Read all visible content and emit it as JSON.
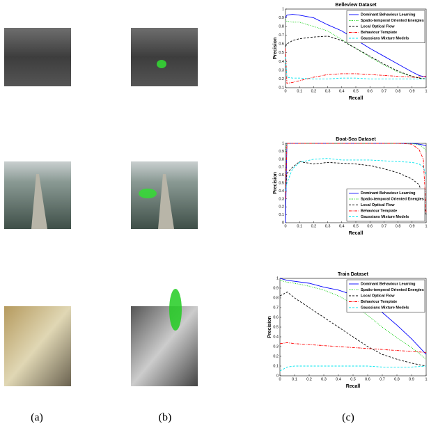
{
  "captions": [
    "(a)",
    "(b)",
    "(c)"
  ],
  "chart_data": [
    {
      "type": "line",
      "title": "Belleview Dataset",
      "xlabel": "Recall",
      "ylabel": "Precision",
      "x": [
        0,
        0.01,
        0.05,
        0.1,
        0.2,
        0.3,
        0.4,
        0.5,
        0.6,
        0.7,
        0.8,
        0.9,
        0.95,
        1
      ],
      "xlim": [
        0,
        1
      ],
      "ylim": [
        0.1,
        1
      ],
      "xticks": [
        0,
        0.1,
        0.2,
        0.3,
        0.4,
        0.5,
        0.6,
        0.7,
        0.8,
        0.9,
        1
      ],
      "yticks": [
        0.1,
        0.2,
        0.3,
        0.4,
        0.5,
        0.6,
        0.7,
        0.8,
        0.9,
        1
      ],
      "legend": "top-right",
      "series": [
        {
          "name": "Dominant Behaviour Learning",
          "color": "#0000ff",
          "dash": "solid",
          "values": [
            0.9,
            0.93,
            0.94,
            0.93,
            0.9,
            0.82,
            0.75,
            0.65,
            0.55,
            0.46,
            0.37,
            0.28,
            0.24,
            0.22
          ]
        },
        {
          "name": "Spatio-temporal Oriented Energies",
          "color": "#00cc00",
          "dash": "dotted",
          "values": [
            0.88,
            0.86,
            0.85,
            0.85,
            0.8,
            0.75,
            0.65,
            0.55,
            0.45,
            0.36,
            0.28,
            0.23,
            0.21,
            0.2
          ]
        },
        {
          "name": "Local Optical Flow",
          "color": "#000000",
          "dash": "dashed",
          "values": [
            0.57,
            0.6,
            0.64,
            0.66,
            0.68,
            0.69,
            0.64,
            0.55,
            0.46,
            0.37,
            0.29,
            0.23,
            0.21,
            0.2
          ]
        },
        {
          "name": "Behaviour Template",
          "color": "#ff0000",
          "dash": "dashdot",
          "values": [
            0.55,
            0.15,
            0.16,
            0.18,
            0.22,
            0.25,
            0.26,
            0.26,
            0.25,
            0.24,
            0.23,
            0.22,
            0.22,
            0.23
          ]
        },
        {
          "name": "Gaussians Mixture Models",
          "color": "#00e5ee",
          "dash": "dashed",
          "values": [
            0.45,
            0.22,
            0.21,
            0.21,
            0.2,
            0.2,
            0.21,
            0.21,
            0.2,
            0.2,
            0.2,
            0.2,
            0.2,
            0.2
          ]
        }
      ]
    },
    {
      "type": "line",
      "title": "Boat-Sea Dataset",
      "xlabel": "Recall",
      "ylabel": "Precision",
      "x": [
        0,
        0.01,
        0.05,
        0.1,
        0.2,
        0.3,
        0.4,
        0.5,
        0.6,
        0.7,
        0.8,
        0.9,
        0.95,
        0.98,
        1
      ],
      "xlim": [
        0,
        1
      ],
      "ylim": [
        0,
        1
      ],
      "xticks": [
        0,
        0.1,
        0.2,
        0.3,
        0.4,
        0.5,
        0.6,
        0.7,
        0.8,
        0.9,
        1
      ],
      "yticks": [
        0,
        0.1,
        0.2,
        0.3,
        0.4,
        0.5,
        0.6,
        0.7,
        0.8,
        0.9,
        1
      ],
      "legend": "bottom-right",
      "series": [
        {
          "name": "Dominant Behaviour Learning",
          "color": "#0000ff",
          "dash": "solid",
          "values": [
            0,
            1,
            1,
            1,
            1,
            1,
            1,
            1,
            1,
            1,
            1,
            1,
            0.99,
            0.98,
            0.97
          ]
        },
        {
          "name": "Spatio-temporal Oriented Energies",
          "color": "#00cc00",
          "dash": "dotted",
          "values": [
            0.9,
            1,
            1,
            1,
            1,
            1,
            1,
            1,
            1,
            1,
            1,
            1,
            0.98,
            0.95,
            0.9
          ]
        },
        {
          "name": "Local Optical Flow",
          "color": "#000000",
          "dash": "dashed",
          "values": [
            0.4,
            0.62,
            0.7,
            0.77,
            0.74,
            0.76,
            0.75,
            0.74,
            0.72,
            0.68,
            0.63,
            0.55,
            0.48,
            0.3,
            0.1
          ]
        },
        {
          "name": "Behaviour Template",
          "color": "#ff0000",
          "dash": "dashdot",
          "values": [
            0.3,
            1,
            1,
            1,
            1,
            1,
            1,
            1,
            1,
            1,
            1,
            0.99,
            0.92,
            0.8,
            0.12
          ]
        },
        {
          "name": "Gaussians Mixture Models",
          "color": "#00e5ee",
          "dash": "dashed",
          "values": [
            0.4,
            0.5,
            0.68,
            0.76,
            0.8,
            0.81,
            0.79,
            0.79,
            0.79,
            0.78,
            0.77,
            0.76,
            0.74,
            0.7,
            0.6
          ]
        }
      ]
    },
    {
      "type": "line",
      "title": "Train Dataset",
      "xlabel": "Recall",
      "ylabel": "Precision",
      "x": [
        0,
        0.05,
        0.1,
        0.2,
        0.3,
        0.4,
        0.5,
        0.6,
        0.7,
        0.8,
        0.9,
        1
      ],
      "xlim": [
        0,
        1
      ],
      "ylim": [
        0,
        1
      ],
      "xticks": [
        0,
        0.1,
        0.2,
        0.3,
        0.4,
        0.5,
        0.6,
        0.7,
        0.8,
        0.9,
        1
      ],
      "yticks": [
        0,
        0.1,
        0.2,
        0.3,
        0.4,
        0.5,
        0.6,
        0.7,
        0.8,
        0.9,
        1
      ],
      "legend": "top-right",
      "series": [
        {
          "name": "Dominant Behaviour Learning",
          "color": "#0000ff",
          "dash": "solid",
          "values": [
            1,
            0.98,
            0.97,
            0.95,
            0.91,
            0.88,
            0.83,
            0.76,
            0.65,
            0.52,
            0.38,
            0.22
          ]
        },
        {
          "name": "Spatio-temporal Oriented Energies",
          "color": "#00cc00",
          "dash": "dotted",
          "values": [
            0.98,
            0.96,
            0.95,
            0.92,
            0.88,
            0.82,
            0.74,
            0.62,
            0.5,
            0.39,
            0.29,
            0.17
          ]
        },
        {
          "name": "Local Optical Flow",
          "color": "#000000",
          "dash": "dashed",
          "values": [
            0.82,
            0.86,
            0.8,
            0.7,
            0.6,
            0.5,
            0.4,
            0.3,
            0.22,
            0.17,
            0.13,
            0.1
          ]
        },
        {
          "name": "Behaviour Template",
          "color": "#ff0000",
          "dash": "dashdot",
          "values": [
            0.33,
            0.34,
            0.33,
            0.32,
            0.31,
            0.3,
            0.29,
            0.28,
            0.27,
            0.26,
            0.25,
            0.24
          ]
        },
        {
          "name": "Gaussians Mixture Models",
          "color": "#00e5ee",
          "dash": "dashed",
          "values": [
            0.05,
            0.09,
            0.1,
            0.1,
            0.1,
            0.1,
            0.1,
            0.1,
            0.09,
            0.09,
            0.09,
            0.1
          ]
        }
      ]
    }
  ]
}
